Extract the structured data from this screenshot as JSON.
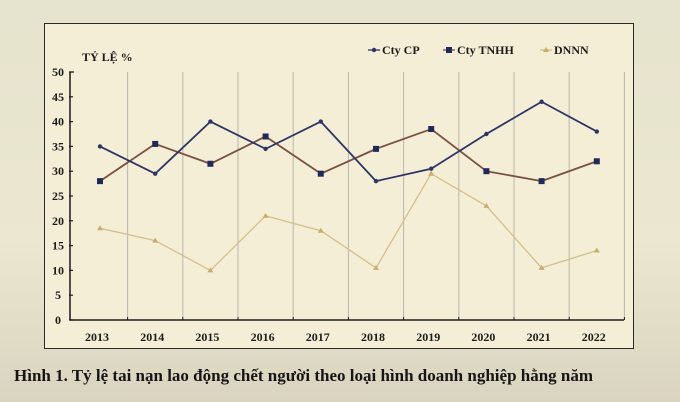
{
  "figure": {
    "caption": "Hình 1. Tỷ lệ tai nạn lao động chết người theo loại hình doanh nghiệp hằng năm"
  },
  "colors": {
    "page_bg": "#e6e3ce",
    "plot_bg": "#f3eed5",
    "grid": "#b8b6ad",
    "axis": "#1c1c1c",
    "cty_cp": "#2e3566",
    "cty_tnhh": "#7a5040",
    "cty_tnhh_marker": "#1f2a5c",
    "dnnn": "#d4bf8a"
  },
  "chart_data": {
    "type": "line",
    "title": "",
    "xlabel": "",
    "ylabel": "TỶ LỆ %",
    "ylim": [
      0,
      50
    ],
    "yticks": [
      0,
      5,
      10,
      15,
      20,
      25,
      30,
      35,
      40,
      45,
      50
    ],
    "grid": "vertical",
    "legend_position": "top-right",
    "categories": [
      "2013",
      "2014",
      "2015",
      "2016",
      "2017",
      "2018",
      "2019",
      "2020",
      "2021",
      "2022"
    ],
    "series": [
      {
        "name": "Cty CP",
        "color": "#2e3566",
        "marker": "dot",
        "values": [
          35,
          29.5,
          40,
          34.5,
          40,
          28,
          30.5,
          37.5,
          44,
          38
        ]
      },
      {
        "name": "Cty TNHH",
        "color": "#7a5040",
        "marker": "square",
        "values": [
          28,
          35.5,
          31.5,
          37,
          29.5,
          34.5,
          38.5,
          30,
          28,
          32
        ]
      },
      {
        "name": "DNNN",
        "color": "#d4bf8a",
        "marker": "triangle",
        "values": [
          18.5,
          16,
          10,
          21,
          18,
          10.5,
          29.5,
          23,
          10.5,
          14
        ]
      }
    ]
  }
}
